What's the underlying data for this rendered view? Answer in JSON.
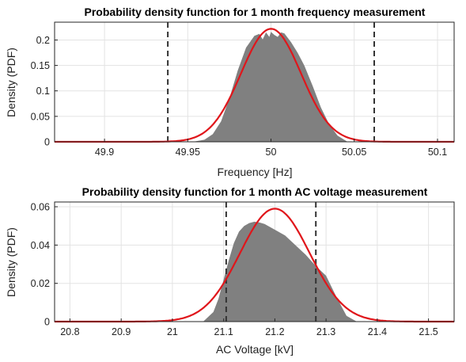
{
  "colors": {
    "histogram": "#808080",
    "fit_curve": "#e0161b",
    "limit_lines": "#333333"
  },
  "chart_data": [
    {
      "type": "area",
      "title": "Probability density function for 1 month frequency measurement",
      "xlabel": "Frequency [Hz]",
      "ylabel": "Density (PDF)",
      "xlim": [
        49.87,
        50.11
      ],
      "ylim": [
        0,
        0.235
      ],
      "grid": true,
      "x_ticks": [
        49.9,
        49.95,
        50,
        50.05,
        50.1
      ],
      "x_tick_labels": [
        "49.9",
        "49.95",
        "50",
        "50.05",
        "50.1"
      ],
      "y_ticks": [
        0,
        0.05,
        0.1,
        0.15,
        0.2
      ],
      "y_tick_labels": [
        "0",
        "0.05",
        "0.1",
        "0.15",
        "0.2"
      ],
      "histogram": {
        "x": [
          49.953,
          49.96,
          49.965,
          49.97,
          49.975,
          49.98,
          49.985,
          49.99,
          49.993,
          49.995,
          49.997,
          49.999,
          50.0,
          50.002,
          50.004,
          50.006,
          50.008,
          50.012,
          50.016,
          50.02,
          50.025,
          50.03,
          50.035,
          50.04,
          50.046
        ],
        "density": [
          0.0,
          0.004,
          0.015,
          0.04,
          0.085,
          0.14,
          0.185,
          0.208,
          0.212,
          0.201,
          0.215,
          0.206,
          0.216,
          0.21,
          0.206,
          0.215,
          0.213,
          0.196,
          0.175,
          0.15,
          0.11,
          0.067,
          0.034,
          0.012,
          0.0
        ]
      },
      "fit_curve": {
        "distribution": "normal",
        "mean": 50.0,
        "std": 0.018,
        "peak": 0.222
      },
      "limit_lines": [
        49.938,
        50.062
      ]
    },
    {
      "type": "area",
      "title": "Probability density function for 1 month AC voltage measurement",
      "xlabel": "AC Voltage [kV]",
      "ylabel": "Density (PDF)",
      "xlim": [
        20.77,
        21.55
      ],
      "ylim": [
        0,
        0.0625
      ],
      "grid": true,
      "x_ticks": [
        20.8,
        20.9,
        21,
        21.1,
        21.2,
        21.3,
        21.4,
        21.5
      ],
      "x_tick_labels": [
        "20.8",
        "20.9",
        "21",
        "21.1",
        "21.2",
        "21.3",
        "21.4",
        "21.5"
      ],
      "y_ticks": [
        0,
        0.02,
        0.04,
        0.06
      ],
      "y_tick_labels": [
        "0",
        "0.02",
        "0.04",
        "0.06"
      ],
      "histogram": {
        "x": [
          21.06,
          21.08,
          21.09,
          21.1,
          21.11,
          21.12,
          21.13,
          21.14,
          21.15,
          21.16,
          21.17,
          21.18,
          21.2,
          21.22,
          21.24,
          21.26,
          21.28,
          21.3,
          21.32,
          21.34,
          21.36
        ],
        "density": [
          0.0,
          0.005,
          0.012,
          0.022,
          0.032,
          0.041,
          0.047,
          0.05,
          0.0515,
          0.0522,
          0.0518,
          0.051,
          0.048,
          0.045,
          0.04,
          0.035,
          0.029,
          0.024,
          0.013,
          0.003,
          0.0
        ]
      },
      "fit_curve": {
        "distribution": "normal",
        "mean": 21.2,
        "std": 0.068,
        "peak": 0.059
      },
      "limit_lines": [
        21.105,
        21.28
      ]
    }
  ]
}
